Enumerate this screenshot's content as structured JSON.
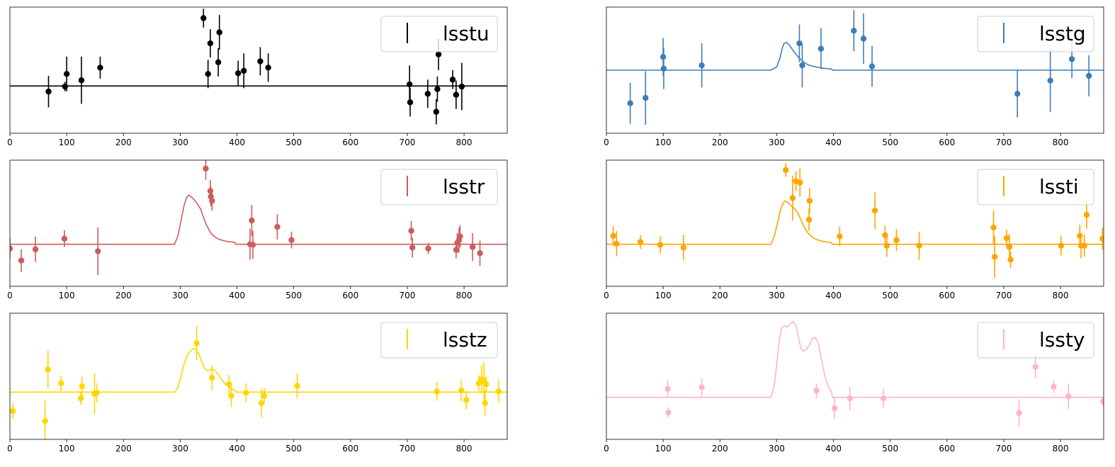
{
  "chart_data": [
    {
      "type": "scatter",
      "band": "lsstu",
      "legend": "lsstu",
      "legend_position": "top-right",
      "color": "#000000",
      "xlim": [
        0,
        876
      ],
      "ylim": [
        -1.5,
        2.5
      ],
      "xticks": [
        0,
        100,
        200,
        300,
        400,
        500,
        600,
        700,
        800
      ],
      "model": {
        "x": [
          0,
          876
        ],
        "y": [
          0.0,
          0.0
        ]
      },
      "points": [
        {
          "x": 68,
          "y": -0.18,
          "err": 0.5
        },
        {
          "x": 97,
          "y": -0.02,
          "err": 0.15
        },
        {
          "x": 100,
          "y": 0.38,
          "err": 0.55
        },
        {
          "x": 126,
          "y": 0.18,
          "err": 0.75
        },
        {
          "x": 159,
          "y": 0.58,
          "err": 0.35
        },
        {
          "x": 341,
          "y": 2.15,
          "err": 0.3
        },
        {
          "x": 349,
          "y": 0.38,
          "err": 0.45
        },
        {
          "x": 353,
          "y": 1.35,
          "err": 0.45
        },
        {
          "x": 367,
          "y": 0.75,
          "err": 0.45
        },
        {
          "x": 369,
          "y": 1.7,
          "err": 0.55
        },
        {
          "x": 402,
          "y": 0.4,
          "err": 0.4
        },
        {
          "x": 412,
          "y": 0.48,
          "err": 0.55
        },
        {
          "x": 441,
          "y": 0.78,
          "err": 0.45
        },
        {
          "x": 455,
          "y": 0.58,
          "err": 0.45
        },
        {
          "x": 704,
          "y": 0.05,
          "err": 0.6
        },
        {
          "x": 705,
          "y": -0.52,
          "err": 0.45
        },
        {
          "x": 736,
          "y": -0.25,
          "err": 0.45
        },
        {
          "x": 751,
          "y": -0.82,
          "err": 0.4
        },
        {
          "x": 753,
          "y": -0.1,
          "err": 0.4
        },
        {
          "x": 755,
          "y": 1.0,
          "err": 0.5
        },
        {
          "x": 780,
          "y": 0.2,
          "err": 0.3
        },
        {
          "x": 786,
          "y": -0.28,
          "err": 0.45
        },
        {
          "x": 796,
          "y": -0.02,
          "err": 0.75
        }
      ]
    },
    {
      "type": "scatter",
      "band": "lsstg",
      "legend": "lsstg",
      "legend_position": "top-right",
      "color": "#3f7db9",
      "xlim": [
        0,
        876
      ],
      "ylim": [
        -2.0,
        2.0
      ],
      "xticks": [
        0,
        100,
        200,
        300,
        400,
        500,
        600,
        700,
        800
      ],
      "model": {
        "x": [
          0,
          290,
          300,
          306,
          310,
          313,
          317,
          322,
          328,
          334,
          340,
          346,
          352,
          358,
          364,
          370,
          376,
          382,
          388,
          395,
          397,
          398,
          876
        ],
        "y": [
          0.0,
          0.0,
          0.1,
          0.4,
          0.7,
          0.85,
          0.88,
          0.8,
          0.65,
          0.5,
          0.38,
          0.28,
          0.2,
          0.15,
          0.12,
          0.1,
          0.08,
          0.06,
          0.05,
          0.04,
          0.03,
          0.0,
          0.0
        ]
      },
      "points": [
        {
          "x": 42,
          "y": -1.05,
          "err": 0.65
        },
        {
          "x": 69,
          "y": -0.88,
          "err": 0.85
        },
        {
          "x": 100,
          "y": 0.42,
          "err": 0.6
        },
        {
          "x": 101,
          "y": 0.05,
          "err": 0.65
        },
        {
          "x": 168,
          "y": 0.15,
          "err": 0.7
        },
        {
          "x": 340,
          "y": 0.85,
          "err": 0.6
        },
        {
          "x": 345,
          "y": 0.15,
          "err": 0.7
        },
        {
          "x": 378,
          "y": 0.68,
          "err": 0.65
        },
        {
          "x": 436,
          "y": 1.25,
          "err": 0.65
        },
        {
          "x": 453,
          "y": 1.0,
          "err": 0.8
        },
        {
          "x": 468,
          "y": 0.12,
          "err": 0.65
        },
        {
          "x": 724,
          "y": -0.75,
          "err": 0.75
        },
        {
          "x": 782,
          "y": -0.33,
          "err": 1.0
        },
        {
          "x": 820,
          "y": 0.35,
          "err": 0.6
        },
        {
          "x": 850,
          "y": -0.18,
          "err": 0.65
        }
      ]
    },
    {
      "type": "scatter",
      "band": "lsstr",
      "legend": "lsstr",
      "legend_position": "top-right",
      "color": "#cd5c5c",
      "xlim": [
        0,
        876
      ],
      "ylim": [
        -1.5,
        3.0
      ],
      "xticks": [
        0,
        100,
        200,
        300,
        400,
        500,
        600,
        700,
        800
      ],
      "model": {
        "x": [
          0,
          290,
          296,
          302,
          307,
          311,
          315,
          319,
          324,
          330,
          336,
          341,
          346,
          351,
          356,
          362,
          368,
          374,
          380,
          386,
          392,
          396,
          397,
          398,
          876
        ],
        "y": [
          0.0,
          0.0,
          0.3,
          0.9,
          1.4,
          1.65,
          1.75,
          1.7,
          1.6,
          1.45,
          1.25,
          0.95,
          0.7,
          0.5,
          0.35,
          0.25,
          0.18,
          0.14,
          0.11,
          0.09,
          0.08,
          0.07,
          0.04,
          0.0,
          0.0
        ]
      },
      "points": [
        {
          "x": 0,
          "y": -0.15,
          "err": 0.35
        },
        {
          "x": 20,
          "y": -0.58,
          "err": 0.4
        },
        {
          "x": 45,
          "y": -0.18,
          "err": 0.45
        },
        {
          "x": 96,
          "y": 0.2,
          "err": 0.3
        },
        {
          "x": 155,
          "y": -0.25,
          "err": 0.85
        },
        {
          "x": 345,
          "y": 2.7,
          "err": 0.4
        },
        {
          "x": 353,
          "y": 1.9,
          "err": 0.4
        },
        {
          "x": 354,
          "y": 1.7,
          "err": 0.35
        },
        {
          "x": 356,
          "y": 1.55,
          "err": 0.35
        },
        {
          "x": 423,
          "y": 0.0,
          "err": 0.55
        },
        {
          "x": 426,
          "y": 0.85,
          "err": 0.55
        },
        {
          "x": 428,
          "y": -0.02,
          "err": 0.5
        },
        {
          "x": 471,
          "y": 0.62,
          "err": 0.45
        },
        {
          "x": 496,
          "y": 0.15,
          "err": 0.3
        },
        {
          "x": 707,
          "y": 0.48,
          "err": 0.35
        },
        {
          "x": 709,
          "y": -0.12,
          "err": 0.35
        },
        {
          "x": 737,
          "y": -0.15,
          "err": 0.2
        },
        {
          "x": 786,
          "y": -0.2,
          "err": 0.3
        },
        {
          "x": 788,
          "y": 0.05,
          "err": 0.35
        },
        {
          "x": 791,
          "y": 0.15,
          "err": 0.45
        },
        {
          "x": 793,
          "y": 0.28,
          "err": 0.4
        },
        {
          "x": 815,
          "y": -0.1,
          "err": 0.5
        },
        {
          "x": 828,
          "y": -0.32,
          "err": 0.45
        }
      ]
    },
    {
      "type": "scatter",
      "band": "lssti",
      "legend": "lssti",
      "legend_position": "top-right",
      "color": "#ffa500",
      "xlim": [
        0,
        876
      ],
      "ylim": [
        -1.5,
        3.0
      ],
      "xticks": [
        0,
        100,
        200,
        300,
        400,
        500,
        600,
        700,
        800
      ],
      "model": {
        "x": [
          0,
          290,
          296,
          302,
          307,
          311,
          315,
          319,
          324,
          330,
          336,
          341,
          346,
          351,
          356,
          362,
          368,
          374,
          380,
          386,
          392,
          396,
          397,
          398,
          876
        ],
        "y": [
          0.0,
          0.0,
          0.3,
          0.8,
          1.25,
          1.45,
          1.55,
          1.5,
          1.4,
          1.3,
          1.15,
          0.95,
          0.72,
          0.52,
          0.38,
          0.27,
          0.19,
          0.14,
          0.11,
          0.09,
          0.07,
          0.06,
          0.03,
          0.0,
          0.0
        ]
      },
      "points": [
        {
          "x": 12,
          "y": 0.3,
          "err": 0.35
        },
        {
          "x": 18,
          "y": 0.02,
          "err": 0.45
        },
        {
          "x": 60,
          "y": 0.08,
          "err": 0.25
        },
        {
          "x": 95,
          "y": -0.02,
          "err": 0.3
        },
        {
          "x": 136,
          "y": -0.12,
          "err": 0.45
        },
        {
          "x": 316,
          "y": 2.65,
          "err": 0.25
        },
        {
          "x": 328,
          "y": 1.65,
          "err": 0.8
        },
        {
          "x": 334,
          "y": 2.25,
          "err": 0.35
        },
        {
          "x": 341,
          "y": 2.2,
          "err": 0.5
        },
        {
          "x": 357,
          "y": 0.88,
          "err": 0.4
        },
        {
          "x": 358,
          "y": 1.55,
          "err": 0.45
        },
        {
          "x": 411,
          "y": 0.28,
          "err": 0.35
        },
        {
          "x": 473,
          "y": 1.2,
          "err": 0.65
        },
        {
          "x": 491,
          "y": 0.32,
          "err": 0.35
        },
        {
          "x": 494,
          "y": -0.05,
          "err": 0.4
        },
        {
          "x": 511,
          "y": 0.15,
          "err": 0.4
        },
        {
          "x": 551,
          "y": -0.05,
          "err": 0.5
        },
        {
          "x": 682,
          "y": 0.6,
          "err": 0.6
        },
        {
          "x": 684,
          "y": -0.45,
          "err": 0.75
        },
        {
          "x": 705,
          "y": 0.22,
          "err": 0.3
        },
        {
          "x": 710,
          "y": -0.1,
          "err": 0.45
        },
        {
          "x": 712,
          "y": -0.55,
          "err": 0.3
        },
        {
          "x": 801,
          "y": -0.05,
          "err": 0.35
        },
        {
          "x": 834,
          "y": 0.3,
          "err": 0.4
        },
        {
          "x": 836,
          "y": -0.05,
          "err": 0.45
        },
        {
          "x": 842,
          "y": -0.05,
          "err": 0.4
        },
        {
          "x": 846,
          "y": 1.05,
          "err": 0.5
        },
        {
          "x": 874,
          "y": 0.2,
          "err": 0.4
        }
      ]
    },
    {
      "type": "scatter",
      "band": "lsstz",
      "legend": "lsstz",
      "legend_position": "top-right",
      "color": "#ffd700",
      "xlim": [
        0,
        876
      ],
      "ylim": [
        -1.5,
        2.5
      ],
      "xticks": [
        0,
        100,
        200,
        300,
        400,
        500,
        600,
        700,
        800
      ],
      "model": {
        "x": [
          0,
          290,
          296,
          302,
          307,
          312,
          318,
          323,
          328,
          333,
          338,
          343,
          348,
          354,
          360,
          366,
          372,
          378,
          384,
          390,
          394,
          397,
          398,
          876
        ],
        "y": [
          0.0,
          0.0,
          0.15,
          0.55,
          0.9,
          1.15,
          1.3,
          1.38,
          1.35,
          1.2,
          0.95,
          0.75,
          0.68,
          0.72,
          0.7,
          0.58,
          0.42,
          0.28,
          0.18,
          0.11,
          0.07,
          0.05,
          0.0,
          0.0
        ]
      },
      "points": [
        {
          "x": 5,
          "y": -0.6,
          "err": 0.25
        },
        {
          "x": 62,
          "y": -0.92,
          "err": 0.65
        },
        {
          "x": 67,
          "y": 0.72,
          "err": 0.6
        },
        {
          "x": 90,
          "y": 0.28,
          "err": 0.25
        },
        {
          "x": 125,
          "y": -0.2,
          "err": 0.2
        },
        {
          "x": 127,
          "y": 0.18,
          "err": 0.3
        },
        {
          "x": 149,
          "y": -0.05,
          "err": 0.65
        },
        {
          "x": 153,
          "y": -0.02,
          "err": 0.3
        },
        {
          "x": 329,
          "y": 1.55,
          "err": 0.55
        },
        {
          "x": 356,
          "y": 0.45,
          "err": 0.4
        },
        {
          "x": 386,
          "y": 0.25,
          "err": 0.3
        },
        {
          "x": 390,
          "y": -0.12,
          "err": 0.35
        },
        {
          "x": 416,
          "y": -0.02,
          "err": 0.3
        },
        {
          "x": 443,
          "y": -0.35,
          "err": 0.45
        },
        {
          "x": 448,
          "y": -0.12,
          "err": 0.25
        },
        {
          "x": 506,
          "y": 0.2,
          "err": 0.4
        },
        {
          "x": 752,
          "y": 0.02,
          "err": 0.3
        },
        {
          "x": 795,
          "y": 0.05,
          "err": 0.35
        },
        {
          "x": 804,
          "y": -0.25,
          "err": 0.3
        },
        {
          "x": 826,
          "y": 0.28,
          "err": 0.25
        },
        {
          "x": 831,
          "y": 0.4,
          "err": 0.45
        },
        {
          "x": 835,
          "y": 0.35,
          "err": 0.6
        },
        {
          "x": 837,
          "y": -0.35,
          "err": 0.4
        },
        {
          "x": 839,
          "y": 0.25,
          "err": 0.25
        },
        {
          "x": 861,
          "y": 0.02,
          "err": 0.35
        }
      ]
    },
    {
      "type": "scatter",
      "band": "lssty",
      "legend": "lssty",
      "legend_position": "top-right",
      "color": "#ffb6c1",
      "xlim": [
        0,
        876
      ],
      "ylim": [
        -2.0,
        4.0
      ],
      "xticks": [
        0,
        100,
        200,
        300,
        400,
        500,
        600,
        700,
        800
      ],
      "model": {
        "x": [
          0,
          290,
          296,
          301,
          305,
          309,
          314,
          319,
          324,
          329,
          334,
          338,
          343,
          348,
          353,
          358,
          363,
          368,
          373,
          379,
          385,
          391,
          396,
          397,
          398,
          876
        ],
        "y": [
          0.0,
          0.0,
          0.6,
          1.8,
          2.8,
          3.3,
          3.4,
          3.35,
          3.5,
          3.6,
          3.4,
          2.9,
          2.3,
          2.2,
          2.3,
          2.5,
          2.8,
          2.85,
          2.6,
          1.8,
          1.0,
          0.5,
          0.3,
          0.25,
          0.0,
          0.0
        ]
      },
      "points": [
        {
          "x": 108,
          "y": 0.4,
          "err": 0.4
        },
        {
          "x": 109,
          "y": -0.72,
          "err": 0.25
        },
        {
          "x": 168,
          "y": 0.48,
          "err": 0.45
        },
        {
          "x": 370,
          "y": 0.32,
          "err": 0.35
        },
        {
          "x": 402,
          "y": -0.52,
          "err": 0.5
        },
        {
          "x": 429,
          "y": -0.05,
          "err": 0.55
        },
        {
          "x": 488,
          "y": -0.05,
          "err": 0.45
        },
        {
          "x": 727,
          "y": -0.75,
          "err": 0.65
        },
        {
          "x": 756,
          "y": 1.45,
          "err": 0.55
        },
        {
          "x": 788,
          "y": 0.5,
          "err": 0.3
        },
        {
          "x": 814,
          "y": 0.05,
          "err": 0.6
        },
        {
          "x": 875,
          "y": -0.2,
          "err": 0.2
        }
      ]
    }
  ]
}
